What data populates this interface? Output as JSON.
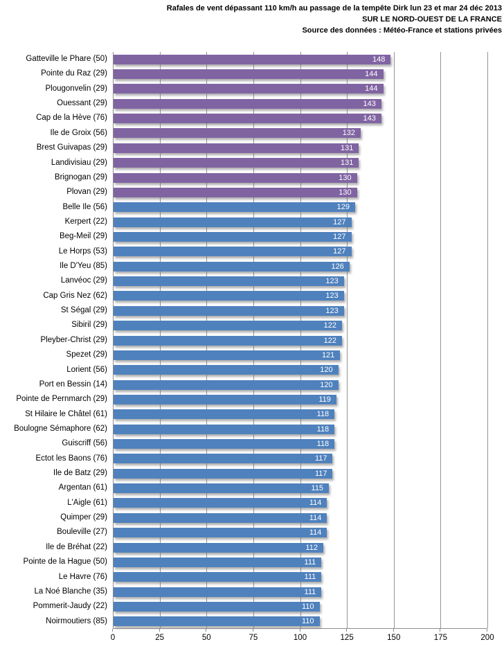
{
  "title": {
    "line1": "Rafales de vent dépassant 110 km/h au passage de la tempête Dirk lun 23 et mar 24 déc 2013",
    "line2": "SUR LE NORD-OUEST  DE LA FRANCE",
    "line3": "Source des données : Météo-France et stations privées"
  },
  "colors": {
    "purple": "#8064A2",
    "blue": "#4F81BD",
    "grid": "#939393",
    "axis": "#8c8c8c",
    "value_label": "#ffffff"
  },
  "chart_data": {
    "type": "bar",
    "orientation": "horizontal",
    "title": "Rafales de vent dépassant 110 km/h au passage de la tempête Dirk lun 23 et mar 24 déc 2013 SUR LE NORD-OUEST DE LA FRANCE — Source des données : Météo-France et stations privées",
    "xlabel": "",
    "ylabel": "",
    "xlim": [
      0,
      200
    ],
    "x_ticks": [
      0,
      25,
      50,
      75,
      100,
      125,
      150,
      175,
      200
    ],
    "grid": true,
    "legend": false,
    "value_labels": "inside-end",
    "rows": [
      {
        "label": "Gatteville le Phare (50)",
        "value": 148,
        "color": "purple"
      },
      {
        "label": "Pointe du Raz (29)",
        "value": 144,
        "color": "purple"
      },
      {
        "label": "Plougonvelin (29)",
        "value": 144,
        "color": "purple"
      },
      {
        "label": "Ouessant (29)",
        "value": 143,
        "color": "purple"
      },
      {
        "label": "Cap de la Hève (76)",
        "value": 143,
        "color": "purple"
      },
      {
        "label": "Ile de Groix (56)",
        "value": 132,
        "color": "purple"
      },
      {
        "label": "Brest Guivapas (29)",
        "value": 131,
        "color": "purple"
      },
      {
        "label": "Landivisiau (29)",
        "value": 131,
        "color": "purple"
      },
      {
        "label": "Brignogan (29)",
        "value": 130,
        "color": "purple"
      },
      {
        "label": "Plovan (29)",
        "value": 130,
        "color": "purple"
      },
      {
        "label": "Belle Ile (56)",
        "value": 129,
        "color": "blue"
      },
      {
        "label": "Kerpert (22)",
        "value": 127,
        "color": "blue"
      },
      {
        "label": "Beg-Meil (29)",
        "value": 127,
        "color": "blue"
      },
      {
        "label": "Le Horps (53)",
        "value": 127,
        "color": "blue"
      },
      {
        "label": "Ile D'Yeu (85)",
        "value": 126,
        "color": "blue"
      },
      {
        "label": "Lanvéoc (29)",
        "value": 123,
        "color": "blue"
      },
      {
        "label": "Cap Gris Nez (62)",
        "value": 123,
        "color": "blue"
      },
      {
        "label": "St Ségal (29)",
        "value": 123,
        "color": "blue"
      },
      {
        "label": "Sibiril (29)",
        "value": 122,
        "color": "blue"
      },
      {
        "label": "Pleyber-Christ (29)",
        "value": 122,
        "color": "blue"
      },
      {
        "label": "Spezet (29)",
        "value": 121,
        "color": "blue"
      },
      {
        "label": "Lorient (56)",
        "value": 120,
        "color": "blue"
      },
      {
        "label": "Port en Bessin (14)",
        "value": 120,
        "color": "blue"
      },
      {
        "label": "Pointe de Pernmarch (29)",
        "value": 119,
        "color": "blue"
      },
      {
        "label": "St Hilaire le Châtel (61)",
        "value": 118,
        "color": "blue"
      },
      {
        "label": "Boulogne Sémaphore (62)",
        "value": 118,
        "color": "blue"
      },
      {
        "label": "Guiscriff (56)",
        "value": 118,
        "color": "blue"
      },
      {
        "label": "Ectot les Baons (76)",
        "value": 117,
        "color": "blue"
      },
      {
        "label": "Ile de Batz (29)",
        "value": 117,
        "color": "blue"
      },
      {
        "label": "Argentan (61)",
        "value": 115,
        "color": "blue"
      },
      {
        "label": "L'Aigle (61)",
        "value": 114,
        "color": "blue"
      },
      {
        "label": "Quimper (29)",
        "value": 114,
        "color": "blue"
      },
      {
        "label": "Bouleville (27)",
        "value": 114,
        "color": "blue"
      },
      {
        "label": "Ile de Bréhat (22)",
        "value": 112,
        "color": "blue"
      },
      {
        "label": "Pointe de la Hague (50)",
        "value": 111,
        "color": "blue"
      },
      {
        "label": "Le Havre (76)",
        "value": 111,
        "color": "blue"
      },
      {
        "label": "La Noé Blanche (35)",
        "value": 111,
        "color": "blue"
      },
      {
        "label": "Pommerit-Jaudy (22)",
        "value": 110,
        "color": "blue"
      },
      {
        "label": "Noirmoutiers (85)",
        "value": 110,
        "color": "blue"
      }
    ]
  }
}
